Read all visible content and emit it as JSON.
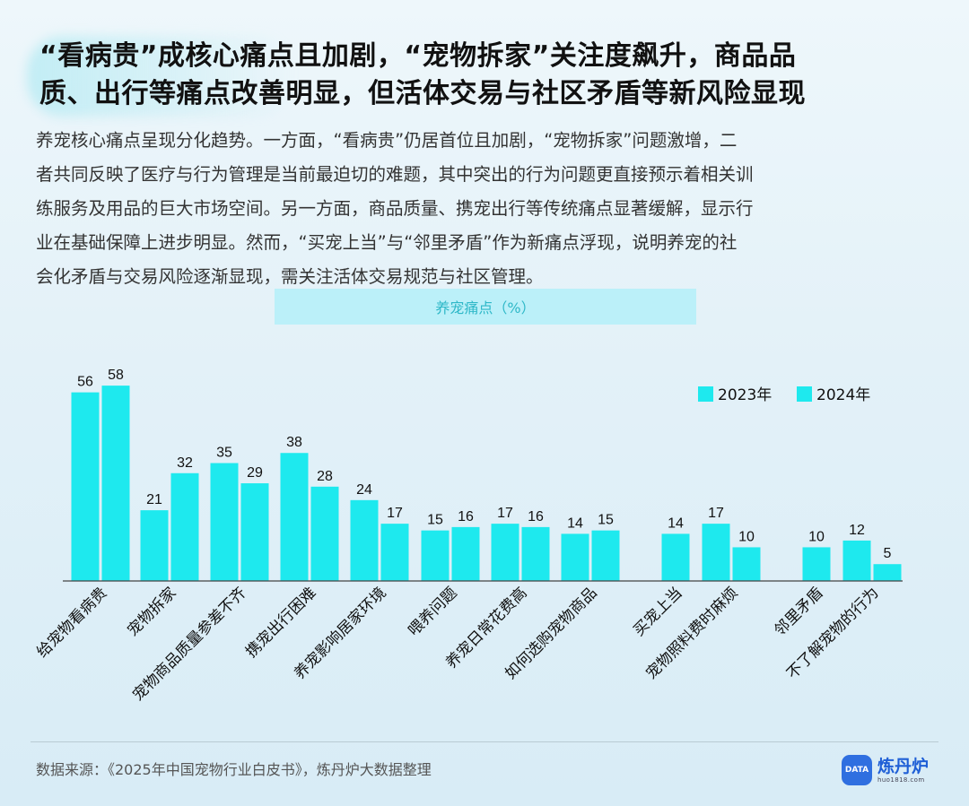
{
  "title_lines": [
    "“看病贵”成核心痛点且加剧，“宠物拆家”关注度飙升，商品品",
    "质、出行等痛点改善明显，但活体交易与社区矛盾等新风险显现"
  ],
  "summary_lines": [
    "养宠核心痛点呈现分化趋势。一方面，“看病贵”仍居首位且加剧，“宠物拆家”问题激增，二",
    "者共同反映了医疗与行为管理是当前最迫切的难题，其中突出的行为问题更直接预示着相关训",
    "练服务及用品的巨大市场空间。另一方面，商品质量、携宠出行等传统痛点显著缓解，显示行",
    "业在基础保障上进步明显。然而，“买宠上当”与“邻里矛盾”作为新痛点浮现，说明养宠的社",
    "会化矛盾与交易风险逐渐显现，需关注活体交易规范与社区管理。"
  ],
  "chart_data": {
    "type": "bar",
    "title": "养宠痛点（%）",
    "categories": [
      "给宠物看病贵",
      "宠物拆家",
      "宠物商品质量参差不齐",
      "携宠出行困难",
      "养宠影响居家环境",
      "喂养问题",
      "养宠日常花费高",
      "如何选购宠物商品",
      "买宠上当",
      "宠物照料费时麻烦",
      "邻里矛盾",
      "不了解宠物的行为"
    ],
    "series": [
      {
        "name": "2023年",
        "values": [
          56,
          21,
          35,
          38,
          24,
          15,
          17,
          14,
          null,
          17,
          null,
          12
        ]
      },
      {
        "name": "2024年",
        "values": [
          58,
          32,
          29,
          28,
          17,
          16,
          16,
          15,
          14,
          10,
          10,
          5
        ]
      }
    ],
    "ylim": [
      0,
      60
    ],
    "legend_position": "top-right",
    "colors": [
      "#1ee9ee",
      "#1ee9ee"
    ],
    "grid": false
  },
  "footer": {
    "source": "数据来源：《2025年中国宠物行业白皮书》，炼丹炉大数据整理",
    "brand_name": "炼丹炉",
    "brand_logo_text": "DATA",
    "brand_url": "huo1818.com"
  }
}
